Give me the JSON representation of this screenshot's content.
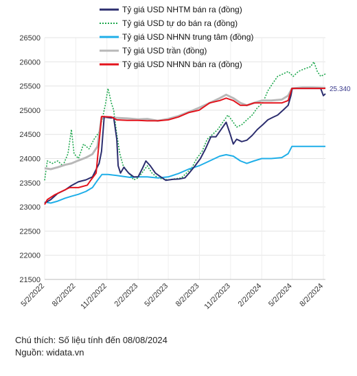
{
  "chart_data": {
    "type": "line",
    "title": "",
    "xlabel": "",
    "ylabel": "",
    "ylim": [
      21500,
      26500
    ],
    "y_ticks": [
      21500,
      22000,
      22500,
      23000,
      23500,
      24000,
      24500,
      25000,
      25500,
      26000,
      26500
    ],
    "x_ticks": [
      "5/2/2022",
      "8/2/2022",
      "11/2/2022",
      "2/2/2023",
      "5/2/2023",
      "8/2/2023",
      "11/2/2023",
      "2/2/2024",
      "5/2/2024",
      "8/2/2024"
    ],
    "legend_position": "top",
    "grid": true,
    "end_label": "25.340",
    "series": [
      {
        "name": "Tỷ giá USD NHTM bán ra (đồng)",
        "color": "#2b2d6e",
        "style": "solid",
        "points": [
          [
            "2022-05-02",
            23080
          ],
          [
            "2022-05-20",
            23150
          ],
          [
            "2022-06-10",
            23280
          ],
          [
            "2022-07-01",
            23350
          ],
          [
            "2022-07-20",
            23440
          ],
          [
            "2022-08-10",
            23520
          ],
          [
            "2022-09-01",
            23560
          ],
          [
            "2022-09-20",
            23620
          ],
          [
            "2022-10-10",
            23900
          ],
          [
            "2022-10-17",
            24150
          ],
          [
            "2022-10-25",
            24870
          ],
          [
            "2022-11-05",
            24850
          ],
          [
            "2022-11-15",
            24840
          ],
          [
            "2022-11-22",
            24850
          ],
          [
            "2022-12-01",
            24400
          ],
          [
            "2022-12-05",
            23850
          ],
          [
            "2022-12-12",
            23700
          ],
          [
            "2022-12-22",
            23820
          ],
          [
            "2023-01-05",
            23700
          ],
          [
            "2023-01-20",
            23620
          ],
          [
            "2023-02-02",
            23620
          ],
          [
            "2023-02-15",
            23800
          ],
          [
            "2023-02-25",
            23950
          ],
          [
            "2023-03-10",
            23850
          ],
          [
            "2023-03-25",
            23700
          ],
          [
            "2023-04-10",
            23620
          ],
          [
            "2023-04-25",
            23550
          ],
          [
            "2023-05-15",
            23570
          ],
          [
            "2023-06-05",
            23580
          ],
          [
            "2023-06-20",
            23600
          ],
          [
            "2023-07-05",
            23720
          ],
          [
            "2023-07-20",
            23850
          ],
          [
            "2023-08-05",
            24000
          ],
          [
            "2023-08-20",
            24200
          ],
          [
            "2023-09-05",
            24450
          ],
          [
            "2023-09-20",
            24450
          ],
          [
            "2023-10-05",
            24600
          ],
          [
            "2023-10-20",
            24750
          ],
          [
            "2023-11-01",
            24500
          ],
          [
            "2023-11-10",
            24300
          ],
          [
            "2023-11-20",
            24400
          ],
          [
            "2023-12-05",
            24350
          ],
          [
            "2023-12-20",
            24380
          ],
          [
            "2024-01-05",
            24480
          ],
          [
            "2024-01-20",
            24600
          ],
          [
            "2024-02-05",
            24700
          ],
          [
            "2024-02-20",
            24800
          ],
          [
            "2024-03-05",
            24850
          ],
          [
            "2024-03-20",
            24900
          ],
          [
            "2024-04-05",
            25000
          ],
          [
            "2024-04-20",
            25100
          ],
          [
            "2024-04-28",
            25300
          ],
          [
            "2024-05-02",
            25450
          ],
          [
            "2024-06-01",
            25450
          ],
          [
            "2024-07-01",
            25450
          ],
          [
            "2024-07-25",
            25450
          ],
          [
            "2024-08-02",
            25300
          ],
          [
            "2024-08-08",
            25340
          ]
        ]
      },
      {
        "name": "Tỷ giá USD tự do bán ra (đồng)",
        "color": "#1aa64a",
        "style": "dotted",
        "points": [
          [
            "2022-05-02",
            23550
          ],
          [
            "2022-05-10",
            23950
          ],
          [
            "2022-05-25",
            23900
          ],
          [
            "2022-06-10",
            23950
          ],
          [
            "2022-06-25",
            23850
          ],
          [
            "2022-07-10",
            24100
          ],
          [
            "2022-07-20",
            24600
          ],
          [
            "2022-07-28",
            24100
          ],
          [
            "2022-08-10",
            24000
          ],
          [
            "2022-08-25",
            24300
          ],
          [
            "2022-09-10",
            24200
          ],
          [
            "2022-09-25",
            24400
          ],
          [
            "2022-10-10",
            24550
          ],
          [
            "2022-10-20",
            24850
          ],
          [
            "2022-10-28",
            25100
          ],
          [
            "2022-11-05",
            25450
          ],
          [
            "2022-11-15",
            25150
          ],
          [
            "2022-11-22",
            25000
          ],
          [
            "2022-12-01",
            24500
          ],
          [
            "2022-12-10",
            24100
          ],
          [
            "2022-12-20",
            23850
          ],
          [
            "2023-01-05",
            23700
          ],
          [
            "2023-01-20",
            23560
          ],
          [
            "2023-02-02",
            23600
          ],
          [
            "2023-02-15",
            23720
          ],
          [
            "2023-03-01",
            23850
          ],
          [
            "2023-03-15",
            23700
          ],
          [
            "2023-04-01",
            23600
          ],
          [
            "2023-04-15",
            23580
          ],
          [
            "2023-05-01",
            23560
          ],
          [
            "2023-05-20",
            23580
          ],
          [
            "2023-06-10",
            23600
          ],
          [
            "2023-06-25",
            23700
          ],
          [
            "2023-07-10",
            23800
          ],
          [
            "2023-07-25",
            24000
          ],
          [
            "2023-08-10",
            24150
          ],
          [
            "2023-08-25",
            24400
          ],
          [
            "2023-09-10",
            24500
          ],
          [
            "2023-09-25",
            24600
          ],
          [
            "2023-10-10",
            24750
          ],
          [
            "2023-10-25",
            24900
          ],
          [
            "2023-11-05",
            24800
          ],
          [
            "2023-11-20",
            24650
          ],
          [
            "2023-12-05",
            24700
          ],
          [
            "2023-12-20",
            24800
          ],
          [
            "2024-01-05",
            24900
          ],
          [
            "2024-01-20",
            25050
          ],
          [
            "2024-02-05",
            25150
          ],
          [
            "2024-02-20",
            25400
          ],
          [
            "2024-03-05",
            25550
          ],
          [
            "2024-03-20",
            25700
          ],
          [
            "2024-04-05",
            25750
          ],
          [
            "2024-04-20",
            25800
          ],
          [
            "2024-05-05",
            25700
          ],
          [
            "2024-05-20",
            25800
          ],
          [
            "2024-06-05",
            25850
          ],
          [
            "2024-06-25",
            25900
          ],
          [
            "2024-07-05",
            26000
          ],
          [
            "2024-07-15",
            25800
          ],
          [
            "2024-07-25",
            25700
          ],
          [
            "2024-08-08",
            25750
          ]
        ]
      },
      {
        "name": "Tỷ giá USD NHNN trung tâm (đồng)",
        "color": "#1eaee8",
        "style": "solid",
        "points": [
          [
            "2022-05-02",
            23100
          ],
          [
            "2022-05-20",
            23080
          ],
          [
            "2022-06-10",
            23120
          ],
          [
            "2022-07-01",
            23180
          ],
          [
            "2022-07-20",
            23220
          ],
          [
            "2022-08-10",
            23260
          ],
          [
            "2022-09-01",
            23320
          ],
          [
            "2022-09-20",
            23400
          ],
          [
            "2022-10-05",
            23550
          ],
          [
            "2022-10-18",
            23670
          ],
          [
            "2022-11-05",
            23670
          ],
          [
            "2022-12-01",
            23650
          ],
          [
            "2022-12-20",
            23630
          ],
          [
            "2023-01-10",
            23610
          ],
          [
            "2023-02-02",
            23620
          ],
          [
            "2023-03-01",
            23620
          ],
          [
            "2023-04-01",
            23600
          ],
          [
            "2023-05-02",
            23620
          ],
          [
            "2023-06-01",
            23690
          ],
          [
            "2023-07-01",
            23780
          ],
          [
            "2023-08-01",
            23850
          ],
          [
            "2023-09-01",
            23950
          ],
          [
            "2023-10-01",
            24050
          ],
          [
            "2023-10-20",
            24080
          ],
          [
            "2023-11-10",
            24050
          ],
          [
            "2023-12-01",
            23950
          ],
          [
            "2023-12-20",
            23900
          ],
          [
            "2024-01-10",
            23950
          ],
          [
            "2024-02-02",
            24000
          ],
          [
            "2024-03-01",
            24000
          ],
          [
            "2024-04-01",
            24020
          ],
          [
            "2024-04-20",
            24100
          ],
          [
            "2024-05-01",
            24250
          ],
          [
            "2024-06-01",
            24250
          ],
          [
            "2024-07-01",
            24250
          ],
          [
            "2024-08-08",
            24250
          ]
        ]
      },
      {
        "name": "Tỷ giá USD trần (đồng)",
        "color": "#b8b8b8",
        "style": "solid",
        "points": [
          [
            "2022-05-02",
            23800
          ],
          [
            "2022-05-20",
            23780
          ],
          [
            "2022-06-10",
            23820
          ],
          [
            "2022-07-01",
            23870
          ],
          [
            "2022-07-20",
            23900
          ],
          [
            "2022-08-10",
            23960
          ],
          [
            "2022-09-01",
            24020
          ],
          [
            "2022-09-20",
            24090
          ],
          [
            "2022-10-05",
            24250
          ],
          [
            "2022-10-17",
            24850
          ],
          [
            "2022-11-05",
            24850
          ],
          [
            "2023-01-01",
            24830
          ],
          [
            "2023-02-02",
            24810
          ],
          [
            "2023-03-01",
            24820
          ],
          [
            "2023-04-01",
            24780
          ],
          [
            "2023-05-02",
            24820
          ],
          [
            "2023-06-01",
            24880
          ],
          [
            "2023-07-01",
            24960
          ],
          [
            "2023-08-01",
            25050
          ],
          [
            "2023-09-01",
            25150
          ],
          [
            "2023-10-01",
            25250
          ],
          [
            "2023-10-20",
            25320
          ],
          [
            "2023-11-10",
            25250
          ],
          [
            "2023-12-01",
            25150
          ],
          [
            "2023-12-20",
            25100
          ],
          [
            "2024-01-10",
            25150
          ],
          [
            "2024-02-02",
            25200
          ],
          [
            "2024-03-01",
            25200
          ],
          [
            "2024-04-01",
            25220
          ],
          [
            "2024-04-20",
            25300
          ],
          [
            "2024-05-01",
            25450
          ],
          [
            "2024-06-01",
            25470
          ],
          [
            "2024-07-01",
            25470
          ],
          [
            "2024-08-08",
            25460
          ]
        ]
      },
      {
        "name": "Tỷ giá USD NHNN bán ra (đồng)",
        "color": "#e3121b",
        "style": "solid",
        "points": [
          [
            "2022-05-02",
            23050
          ],
          [
            "2022-05-10",
            23150
          ],
          [
            "2022-06-01",
            23250
          ],
          [
            "2022-07-15",
            23400
          ],
          [
            "2022-08-10",
            23400
          ],
          [
            "2022-09-05",
            23450
          ],
          [
            "2022-09-15",
            23550
          ],
          [
            "2022-10-01",
            23700
          ],
          [
            "2022-10-17",
            24870
          ],
          [
            "2022-11-15",
            24860
          ],
          [
            "2022-12-01",
            24800
          ],
          [
            "2023-01-01",
            24790
          ],
          [
            "2023-02-02",
            24790
          ],
          [
            "2023-03-01",
            24780
          ],
          [
            "2023-04-01",
            24780
          ],
          [
            "2023-05-02",
            24800
          ],
          [
            "2023-06-01",
            24860
          ],
          [
            "2023-07-01",
            24950
          ],
          [
            "2023-08-01",
            25000
          ],
          [
            "2023-09-01",
            25150
          ],
          [
            "2023-10-01",
            25200
          ],
          [
            "2023-10-20",
            25250
          ],
          [
            "2023-11-10",
            25200
          ],
          [
            "2023-12-01",
            25100
          ],
          [
            "2023-12-20",
            25100
          ],
          [
            "2024-01-10",
            25150
          ],
          [
            "2024-02-02",
            25150
          ],
          [
            "2024-03-01",
            25150
          ],
          [
            "2024-04-01",
            25150
          ],
          [
            "2024-04-20",
            25200
          ],
          [
            "2024-05-01",
            25450
          ],
          [
            "2024-06-01",
            25450
          ],
          [
            "2024-07-01",
            25450
          ],
          [
            "2024-08-08",
            25450
          ]
        ]
      }
    ]
  },
  "footer": {
    "note": "Chú thích: Số liệu tính đến 08/08/2024",
    "source": "Nguồn: widata.vn"
  }
}
